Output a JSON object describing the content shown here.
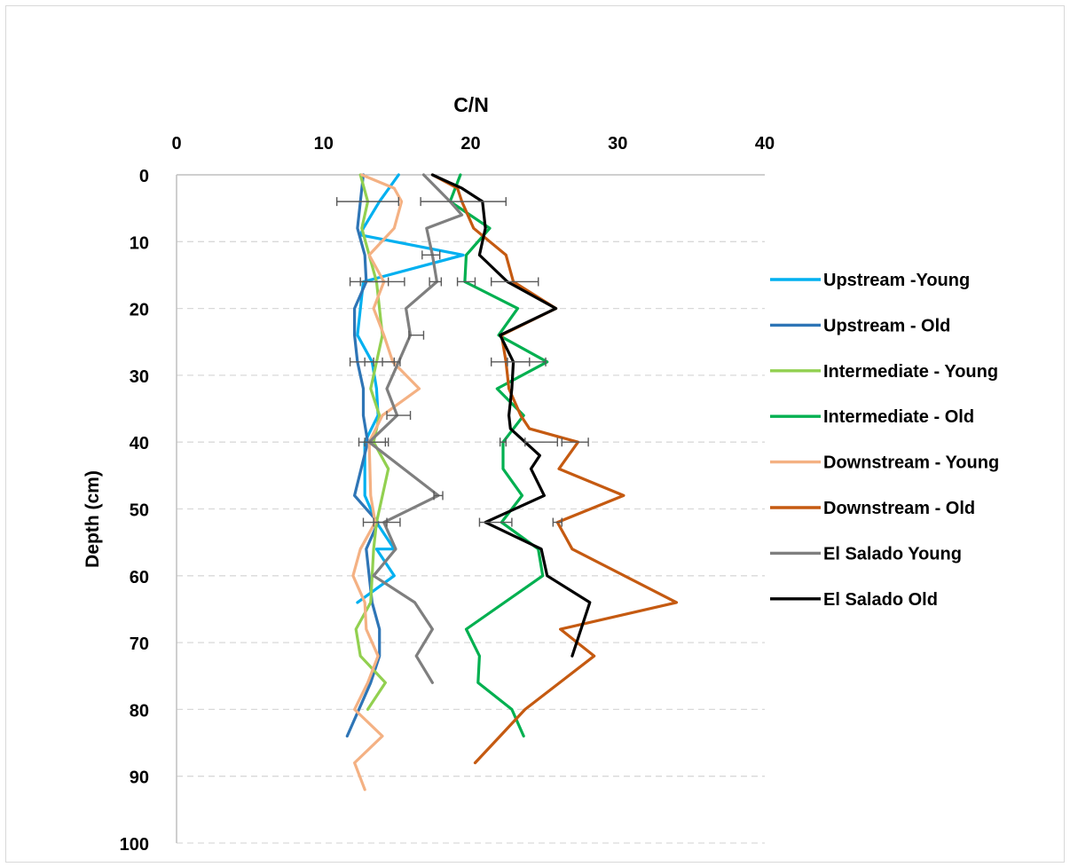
{
  "chart_data": {
    "type": "line",
    "title": "",
    "xlabel": "C/N",
    "ylabel": "Depth (cm)",
    "xlim": [
      0,
      40
    ],
    "ylim": [
      0,
      100
    ],
    "x_axis_position": "top",
    "y_axis_reversed": true,
    "x_ticks": [
      "0",
      "10",
      "20",
      "30",
      "40"
    ],
    "y_ticks": [
      "0",
      "10",
      "20",
      "30",
      "40",
      "50",
      "60",
      "70",
      "80",
      "90",
      "100"
    ],
    "horizontal_grid": true,
    "grid_style": "dashed",
    "legend_position": "right",
    "series": [
      {
        "name": "Upstream -Young",
        "color": "#00b0f0",
        "x": [
          15.1,
          13.8,
          12.7,
          12.5,
          19.5,
          12.7,
          12.3,
          13.3,
          13.6,
          13.7,
          12.8,
          12.8,
          13.6,
          14.8,
          13.6,
          14.8,
          12.3
        ],
        "y": [
          0,
          4,
          8,
          9,
          12,
          16,
          24,
          28,
          32,
          36,
          40,
          48,
          52,
          56,
          56,
          60,
          64
        ]
      },
      {
        "name": "Upstream - Old",
        "color": "#2e75b6",
        "x": [
          12.7,
          12.3,
          12.8,
          12.9,
          12.1,
          12.1,
          12.3,
          12.7,
          12.7,
          13.0,
          12.1,
          13.7,
          12.9,
          13.3,
          13.8,
          13.8,
          13.2,
          11.6
        ],
        "y": [
          0,
          8,
          12,
          16,
          20,
          24,
          28,
          32,
          36,
          40,
          48,
          52,
          56,
          64,
          68,
          72,
          76,
          84
        ]
      },
      {
        "name": "Intermediate - Young",
        "color": "#92d050",
        "x": [
          12.5,
          13.0,
          12.6,
          13.6,
          14.0,
          13.6,
          13.2,
          13.8,
          13.4,
          14.4,
          13.6,
          13.4,
          13.2,
          12.2,
          12.5,
          14.2,
          13.0
        ],
        "y": [
          0,
          4,
          8,
          16,
          24,
          28,
          32,
          36,
          40,
          44,
          52,
          56,
          64,
          68,
          72,
          76,
          80
        ]
      },
      {
        "name": "Intermediate - Old",
        "color": "#00b050",
        "x": [
          19.3,
          18.6,
          21.3,
          19.7,
          19.6,
          23.2,
          21.9,
          25.2,
          21.8,
          23.6,
          22.2,
          22.2,
          23.5,
          22.1,
          24.6,
          24.9,
          19.7,
          20.6,
          20.5,
          22.8,
          23.6
        ],
        "y": [
          0,
          4,
          8,
          12,
          16,
          20,
          24,
          28,
          32,
          36,
          40,
          44,
          48,
          52,
          56,
          60,
          68,
          72,
          76,
          80,
          84
        ]
      },
      {
        "name": "Downstream - Young",
        "color": "#f4b183",
        "x": [
          12.6,
          14.8,
          15.3,
          14.8,
          13.1,
          14.1,
          13.4,
          14.1,
          14.7,
          16.5,
          14.0,
          13.1,
          13.2,
          13.5,
          12.5,
          12.0,
          12.8,
          12.9,
          13.7,
          13.0,
          12.1,
          14.0,
          12.1,
          12.8
        ],
        "y": [
          0,
          2,
          4,
          8,
          12,
          16,
          20,
          24,
          28,
          32,
          36,
          40,
          48,
          52,
          56,
          60,
          64,
          68,
          72,
          76,
          80,
          84,
          88,
          92
        ]
      },
      {
        "name": "Downstream - Old",
        "color": "#c55a11",
        "x": [
          17.4,
          19.1,
          19.4,
          19.8,
          20.2,
          22.4,
          22.9,
          25.8,
          22.1,
          22.4,
          22.6,
          23.4,
          24.0,
          27.3,
          26.0,
          30.4,
          25.9,
          26.9,
          34.0,
          26.1,
          28.4,
          23.7,
          22.0,
          20.3
        ],
        "y": [
          0,
          2,
          4,
          6,
          8,
          12,
          16,
          20,
          24,
          28,
          32,
          36,
          38,
          40,
          44,
          48,
          52,
          56,
          64,
          68,
          72,
          80,
          84,
          88
        ]
      },
      {
        "name": "El Salado Young",
        "color": "#7f7f7f",
        "x": [
          16.8,
          18.6,
          19.4,
          17.0,
          17.4,
          17.7,
          15.6,
          15.9,
          15.1,
          14.3,
          15.0,
          13.1,
          17.8,
          14.1,
          14.9,
          13.4,
          16.2,
          17.4,
          16.3,
          17.4
        ],
        "y": [
          0,
          4,
          6,
          8,
          12,
          16,
          20,
          24,
          28,
          32,
          36,
          40,
          48,
          52,
          56,
          60,
          64,
          68,
          72,
          76
        ]
      },
      {
        "name": "El Salado Old",
        "color": "#000000",
        "x": [
          17.4,
          19.4,
          20.8,
          21.0,
          20.6,
          22.5,
          25.8,
          22.0,
          22.9,
          22.8,
          22.6,
          22.7,
          24.7,
          24.1,
          25.0,
          21.0,
          24.8,
          25.2,
          28.1,
          26.9
        ],
        "y": [
          0,
          2,
          4,
          8,
          12,
          16,
          20,
          24,
          28,
          32,
          36,
          38,
          42,
          44,
          48,
          52,
          56,
          60,
          64,
          72
        ]
      }
    ],
    "error_bars": [
      {
        "x": 13.0,
        "y": 4,
        "err": 2.1
      },
      {
        "x": 19.5,
        "y": 4,
        "err": 2.9
      },
      {
        "x": 17.3,
        "y": 12,
        "err": 0.6
      },
      {
        "x": 13.1,
        "y": 16,
        "err": 1.3
      },
      {
        "x": 14.0,
        "y": 16,
        "err": 1.5
      },
      {
        "x": 17.6,
        "y": 16,
        "err": 0.4
      },
      {
        "x": 19.7,
        "y": 16,
        "err": 0.6
      },
      {
        "x": 23.0,
        "y": 16,
        "err": 1.6
      },
      {
        "x": 16.3,
        "y": 24,
        "err": 0.5
      },
      {
        "x": 12.6,
        "y": 28,
        "err": 0.8
      },
      {
        "x": 13.8,
        "y": 28,
        "err": 1.0
      },
      {
        "x": 14.6,
        "y": 28,
        "err": 0.6
      },
      {
        "x": 22.7,
        "y": 28,
        "err": 1.3
      },
      {
        "x": 23.8,
        "y": 28,
        "err": 1.3
      },
      {
        "x": 15.1,
        "y": 36,
        "err": 0.8
      },
      {
        "x": 13.3,
        "y": 40,
        "err": 0.9
      },
      {
        "x": 13.6,
        "y": 40,
        "err": 0.8
      },
      {
        "x": 22.2,
        "y": 40,
        "err": 0.2
      },
      {
        "x": 24.8,
        "y": 40,
        "err": 1.1
      },
      {
        "x": 27.1,
        "y": 40,
        "err": 0.9
      },
      {
        "x": 17.8,
        "y": 48,
        "err": 0.3
      },
      {
        "x": 13.5,
        "y": 52,
        "err": 0.8
      },
      {
        "x": 14.3,
        "y": 52,
        "err": 0.9
      },
      {
        "x": 21.7,
        "y": 52,
        "err": 1.1
      },
      {
        "x": 25.9,
        "y": 52,
        "err": 0.3
      }
    ]
  }
}
